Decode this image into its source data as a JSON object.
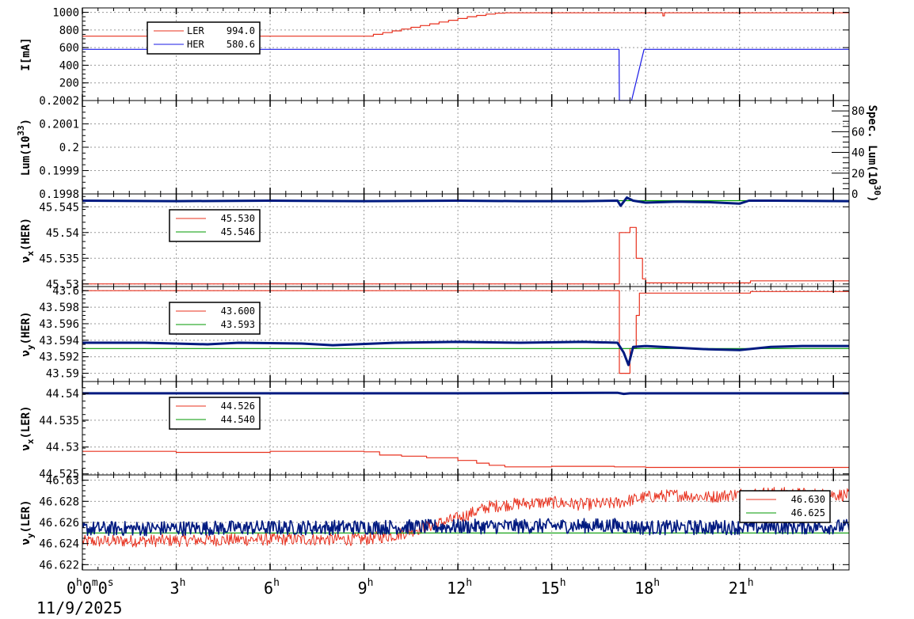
{
  "chart_data": {
    "type": "line",
    "x_unit": "hours",
    "x_range": [
      0,
      24.5
    ],
    "x_ticks": [
      {
        "value": 0,
        "label": "0",
        "sup": "h",
        "label2": "0",
        "sup2": "m",
        "label3": "0",
        "sup3": "s"
      },
      {
        "value": 3,
        "label": "3",
        "sup": "h"
      },
      {
        "value": 6,
        "label": "6",
        "sup": "h"
      },
      {
        "value": 9,
        "label": "9",
        "sup": "h"
      },
      {
        "value": 12,
        "label": "12",
        "sup": "h"
      },
      {
        "value": 15,
        "label": "15",
        "sup": "h"
      },
      {
        "value": 18,
        "label": "18",
        "sup": "h"
      },
      {
        "value": 21,
        "label": "21",
        "sup": "h"
      }
    ],
    "date_label": "11/9/2025",
    "colors": {
      "ler": "#e8311e",
      "her": "#1a1ae6",
      "her_tune": "#001a80",
      "green": "#009900",
      "grid": "#999999"
    },
    "panels": [
      {
        "id": "current",
        "ylabel": "I[mA]",
        "ylim": [
          0,
          1050
        ],
        "yticks": [
          200,
          400,
          600,
          800,
          1000
        ],
        "ytick_labels": [
          "200",
          "400",
          "600",
          "800",
          "1000"
        ],
        "legend": [
          {
            "name": "LER",
            "value": "994.0",
            "color": "#e8311e"
          },
          {
            "name": "HER",
            "value": "580.6",
            "color": "#1a1ae6"
          }
        ],
        "series": [
          {
            "name": "LER",
            "color": "#e8311e",
            "step": true,
            "x": [
              0,
              9.0,
              9.3,
              9.6,
              9.9,
              10.2,
              10.5,
              10.8,
              11.1,
              11.4,
              11.7,
              12.0,
              12.3,
              12.6,
              12.9,
              13.2,
              13.5,
              18.5,
              18.55,
              18.6,
              24.5
            ],
            "y": [
              730,
              730,
              750,
              770,
              790,
              810,
              830,
              850,
              870,
              890,
              910,
              930,
              950,
              965,
              980,
              990,
              994,
              994,
              960,
              994,
              994
            ]
          },
          {
            "name": "HER",
            "color": "#1a1ae6",
            "step": false,
            "x": [
              0,
              17.15,
              17.16,
              17.55,
              17.95,
              24.5
            ],
            "y": [
              581,
              581,
              0,
              0,
              581,
              581
            ]
          }
        ]
      },
      {
        "id": "lum",
        "ylabel": "Lum(10",
        "ylabel_sup": "33",
        "ylabel_end": ")",
        "ylim": [
          0.1998,
          0.2002
        ],
        "yticks": [
          0.1998,
          0.1999,
          0.2,
          0.2001,
          0.2002
        ],
        "ytick_labels": [
          "0.1998",
          "0.1999",
          "0.2",
          "0.2001",
          "0.2002"
        ],
        "right_axis": {
          "label": "Spec. Lum(10",
          "label_sup": "30",
          "label_end": ")",
          "ylim": [
            0,
            90
          ],
          "yticks": [
            0,
            20,
            40,
            60,
            80
          ],
          "ytick_labels": [
            "0",
            "20",
            "40",
            "60",
            "80"
          ]
        },
        "series": []
      },
      {
        "id": "nux_her",
        "ylabel": "ν",
        "ylabel_sub": "x",
        "ylabel_end": "(HER)",
        "ylim": [
          45.5295,
          45.5475
        ],
        "yticks": [
          45.53,
          45.535,
          45.54,
          45.545
        ],
        "ytick_labels": [
          "45.53",
          "45.535",
          "45.54",
          "45.545"
        ],
        "legend": [
          {
            "name": "",
            "value": "45.530",
            "color": "#e8311e"
          },
          {
            "name": "",
            "value": "45.546",
            "color": "#009900"
          }
        ],
        "series": [
          {
            "name": "red",
            "color": "#e8311e",
            "step": true,
            "x": [
              0,
              17.15,
              17.16,
              17.5,
              17.7,
              17.9,
              18.0,
              21.3,
              21.35,
              24.5
            ],
            "y": [
              45.53,
              45.53,
              45.54,
              45.541,
              45.535,
              45.531,
              45.5302,
              45.5302,
              45.5306,
              45.5306
            ]
          },
          {
            "name": "green",
            "color": "#009900",
            "step": false,
            "x": [
              0,
              24.5
            ],
            "y": [
              45.5462,
              45.5462
            ]
          },
          {
            "name": "blue",
            "color": "#001a80",
            "step": false,
            "thick": true,
            "x": [
              0,
              3,
              6,
              9,
              12,
              14,
              16,
              17.1,
              17.2,
              17.4,
              17.6,
              18.0,
              19.0,
              20.0,
              21.0,
              21.3,
              22,
              24.5
            ],
            "y": [
              45.5462,
              45.5461,
              45.5462,
              45.5461,
              45.5462,
              45.5461,
              45.5461,
              45.5462,
              45.5452,
              45.5468,
              45.5462,
              45.5458,
              45.546,
              45.5459,
              45.5456,
              45.5462,
              45.5462,
              45.5461
            ]
          }
        ]
      },
      {
        "id": "nuy_her",
        "ylabel": "ν",
        "ylabel_sub": "y",
        "ylabel_end": "(HER)",
        "ylim": [
          43.589,
          43.6005
        ],
        "yticks": [
          43.59,
          43.592,
          43.594,
          43.596,
          43.598,
          43.6
        ],
        "ytick_labels": [
          "43.59",
          "43.592",
          "43.594",
          "43.596",
          "43.598",
          "43.6"
        ],
        "legend": [
          {
            "name": "",
            "value": "43.600",
            "color": "#e8311e"
          },
          {
            "name": "",
            "value": "43.593",
            "color": "#009900"
          }
        ],
        "series": [
          {
            "name": "red",
            "color": "#e8311e",
            "step": true,
            "x": [
              0,
              17.15,
              17.16,
              17.45,
              17.5,
              17.7,
              17.8,
              21.3,
              21.35,
              24.5
            ],
            "y": [
              43.6,
              43.6,
              43.59,
              43.59,
              43.593,
              43.597,
              43.5997,
              43.5997,
              43.5999,
              43.5999
            ]
          },
          {
            "name": "green",
            "color": "#009900",
            "step": false,
            "x": [
              0,
              24.5
            ],
            "y": [
              43.593,
              43.593
            ]
          },
          {
            "name": "blue",
            "color": "#001a80",
            "step": false,
            "thick": true,
            "x": [
              0,
              2,
              4,
              5,
              7,
              8,
              10,
              12,
              14,
              16,
              17.1,
              17.3,
              17.45,
              17.6,
              18.0,
              19,
              20,
              21,
              22,
              23,
              24.5
            ],
            "y": [
              43.5937,
              43.5937,
              43.5935,
              43.5937,
              43.5936,
              43.5934,
              43.5937,
              43.5938,
              43.5937,
              43.5938,
              43.5937,
              43.5925,
              43.591,
              43.5932,
              43.5933,
              43.5931,
              43.5929,
              43.5928,
              43.5932,
              43.5933,
              43.5933
            ]
          }
        ]
      },
      {
        "id": "nux_ler",
        "ylabel": "ν",
        "ylabel_sub": "x",
        "ylabel_end": "(LER)",
        "ylim": [
          44.5248,
          44.5422
        ],
        "yticks": [
          44.525,
          44.53,
          44.535,
          44.54
        ],
        "ytick_labels": [
          "44.525",
          "44.53",
          "44.535",
          "44.54"
        ],
        "legend": [
          {
            "name": "",
            "value": "44.526",
            "color": "#e8311e"
          },
          {
            "name": "",
            "value": "44.540",
            "color": "#009900"
          }
        ],
        "series": [
          {
            "name": "red",
            "color": "#e8311e",
            "step": true,
            "x": [
              0,
              3,
              6,
              9,
              9.5,
              10.2,
              11,
              12,
              12.6,
              13,
              13.5,
              15,
              17,
              18,
              24.5
            ],
            "y": [
              44.5292,
              44.529,
              44.5292,
              44.5291,
              44.5285,
              44.5283,
              44.528,
              44.5275,
              44.527,
              44.5266,
              44.5263,
              44.5264,
              44.5263,
              44.5262,
              44.5262
            ]
          },
          {
            "name": "green",
            "color": "#009900",
            "step": false,
            "x": [
              0,
              24.5
            ],
            "y": [
              44.54,
              44.54
            ]
          },
          {
            "name": "blue",
            "color": "#001a80",
            "step": false,
            "thick": true,
            "x": [
              0,
              6,
              12,
              17.1,
              17.3,
              17.5,
              24.5
            ],
            "y": [
              44.54,
              44.54,
              44.54,
              44.5401,
              44.5399,
              44.54,
              44.54
            ]
          }
        ]
      },
      {
        "id": "nuy_ler",
        "ylabel": "ν",
        "ylabel_sub": "y",
        "ylabel_end": "(LER)",
        "ylim": [
          46.6215,
          46.6305
        ],
        "yticks": [
          46.622,
          46.624,
          46.626,
          46.628,
          46.63
        ],
        "ytick_labels": [
          "46.622",
          "46.624",
          "46.626",
          "46.628",
          "46.63"
        ],
        "legend": [
          {
            "name": "",
            "value": "46.630",
            "color": "#e8311e"
          },
          {
            "name": "",
            "value": "46.625",
            "color": "#009900"
          }
        ],
        "series": [
          {
            "name": "red",
            "color": "#e8311e",
            "step": false,
            "noisy": true,
            "noise": 0.0006,
            "x": [
              0,
              3,
              6,
              9,
              10,
              11,
              12,
              13,
              14,
              15,
              16,
              17,
              18,
              19,
              20,
              21,
              22,
              23,
              24.5
            ],
            "y": [
              46.6242,
              46.6243,
              46.6244,
              46.6244,
              46.6248,
              46.6256,
              46.6264,
              46.6275,
              46.6278,
              46.6279,
              46.6277,
              46.6278,
              46.6284,
              46.6286,
              46.6284,
              46.6287,
              46.6288,
              46.6287,
              46.6286
            ]
          },
          {
            "name": "green",
            "color": "#009900",
            "step": false,
            "x": [
              0,
              24.5
            ],
            "y": [
              46.625,
              46.625
            ]
          },
          {
            "name": "blue",
            "color": "#001a80",
            "step": false,
            "noisy": true,
            "noise": 0.0007,
            "thick": true,
            "x": [
              0,
              6,
              12,
              17,
              18,
              24.5
            ],
            "y": [
              46.6254,
              46.6255,
              46.6256,
              46.6257,
              46.6255,
              46.6256
            ]
          }
        ]
      }
    ]
  }
}
